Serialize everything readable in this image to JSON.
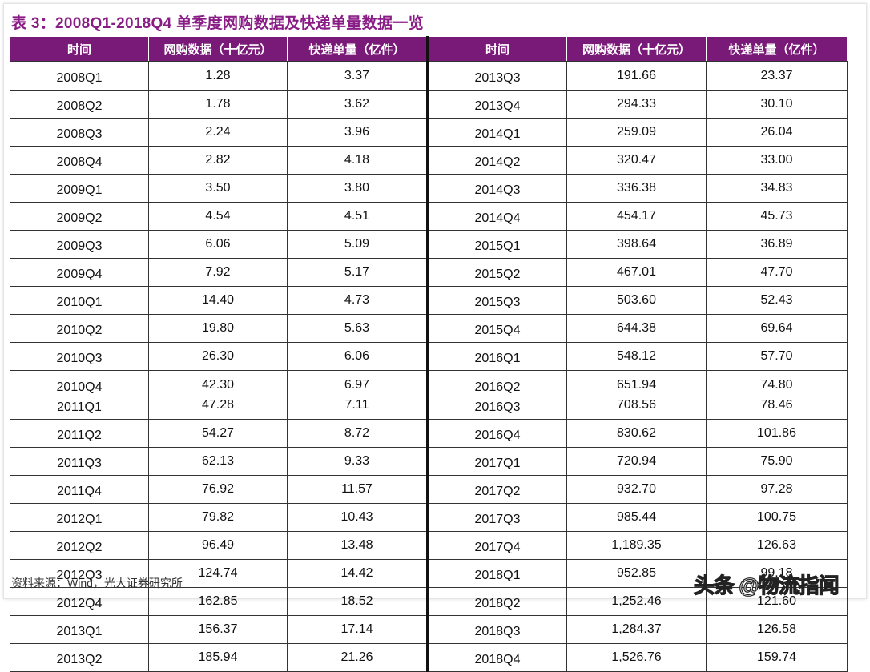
{
  "title": "表 3：2008Q1-2018Q4 单季度网购数据及快递单量数据一览",
  "headers": [
    "时间",
    "网购数据（十亿元）",
    "快递单量（亿件）",
    "时间",
    "网购数据（十亿元）",
    "快递单量（亿件）"
  ],
  "colors": {
    "header_bg": "#7a1a78",
    "title": "#8a1c86"
  },
  "rows": [
    {
      "left": [
        [
          "2008Q1",
          "1.28",
          "3.37"
        ]
      ],
      "right": [
        [
          "2013Q3",
          "191.66",
          "23.37"
        ]
      ]
    },
    {
      "left": [
        [
          "2008Q2",
          "1.78",
          "3.62"
        ]
      ],
      "right": [
        [
          "2013Q4",
          "294.33",
          "30.10"
        ]
      ]
    },
    {
      "left": [
        [
          "2008Q3",
          "2.24",
          "3.96"
        ]
      ],
      "right": [
        [
          "2014Q1",
          "259.09",
          "26.04"
        ]
      ]
    },
    {
      "left": [
        [
          "2008Q4",
          "2.82",
          "4.18"
        ]
      ],
      "right": [
        [
          "2014Q2",
          "320.47",
          "33.00"
        ]
      ]
    },
    {
      "left": [
        [
          "2009Q1",
          "3.50",
          "3.80"
        ]
      ],
      "right": [
        [
          "2014Q3",
          "336.38",
          "34.83"
        ]
      ]
    },
    {
      "left": [
        [
          "2009Q2",
          "4.54",
          "4.51"
        ]
      ],
      "right": [
        [
          "2014Q4",
          "454.17",
          "45.73"
        ]
      ]
    },
    {
      "left": [
        [
          "2009Q3",
          "6.06",
          "5.09"
        ]
      ],
      "right": [
        [
          "2015Q1",
          "398.64",
          "36.89"
        ]
      ]
    },
    {
      "left": [
        [
          "2009Q4",
          "7.92",
          "5.17"
        ]
      ],
      "right": [
        [
          "2015Q2",
          "467.01",
          "47.70"
        ]
      ]
    },
    {
      "left": [
        [
          "2010Q1",
          "14.40",
          "4.73"
        ]
      ],
      "right": [
        [
          "2015Q3",
          "503.60",
          "52.43"
        ]
      ]
    },
    {
      "left": [
        [
          "2010Q2",
          "19.80",
          "5.63"
        ]
      ],
      "right": [
        [
          "2015Q4",
          "644.38",
          "69.64"
        ]
      ]
    },
    {
      "left": [
        [
          "2010Q3",
          "26.30",
          "6.06"
        ]
      ],
      "right": [
        [
          "2016Q1",
          "548.12",
          "57.70"
        ]
      ]
    },
    {
      "left": [
        [
          "2010Q4",
          "42.30",
          "6.97"
        ],
        [
          "2011Q1",
          "47.28",
          "7.11"
        ]
      ],
      "right": [
        [
          "2016Q2",
          "651.94",
          "74.80"
        ],
        [
          "2016Q3",
          "708.56",
          "78.46"
        ]
      ]
    },
    {
      "left": [
        [
          "2011Q2",
          "54.27",
          "8.72"
        ]
      ],
      "right": [
        [
          "2016Q4",
          "830.62",
          "101.86"
        ]
      ]
    },
    {
      "left": [
        [
          "2011Q3",
          "62.13",
          "9.33"
        ]
      ],
      "right": [
        [
          "2017Q1",
          "720.94",
          "75.90"
        ]
      ]
    },
    {
      "left": [
        [
          "2011Q4",
          "76.92",
          "11.57"
        ]
      ],
      "right": [
        [
          "2017Q2",
          "932.70",
          "97.28"
        ]
      ]
    },
    {
      "left": [
        [
          "2012Q1",
          "79.82",
          "10.43"
        ]
      ],
      "right": [
        [
          "2017Q3",
          "985.44",
          "100.75"
        ]
      ]
    },
    {
      "left": [
        [
          "2012Q2",
          "96.49",
          "13.48"
        ]
      ],
      "right": [
        [
          "2017Q4",
          "1,189.35",
          "126.63"
        ]
      ]
    },
    {
      "left": [
        [
          "2012Q3",
          "124.74",
          "14.42"
        ]
      ],
      "right": [
        [
          "2018Q1",
          "952.85",
          "99.18"
        ]
      ]
    },
    {
      "left": [
        [
          "2012Q4",
          "162.85",
          "18.52"
        ]
      ],
      "right": [
        [
          "2018Q2",
          "1,252.46",
          "121.60"
        ]
      ]
    },
    {
      "left": [
        [
          "2013Q1",
          "156.37",
          "17.14"
        ]
      ],
      "right": [
        [
          "2018Q3",
          "1,284.37",
          "126.58"
        ]
      ]
    },
    {
      "left": [
        [
          "2013Q2",
          "185.94",
          "21.26"
        ]
      ],
      "right": [
        [
          "2018Q4",
          "1,526.76",
          "159.74"
        ]
      ]
    }
  ],
  "source": "资料来源：Wind，光大证券研究所",
  "watermark": "头条 @物流指闻"
}
